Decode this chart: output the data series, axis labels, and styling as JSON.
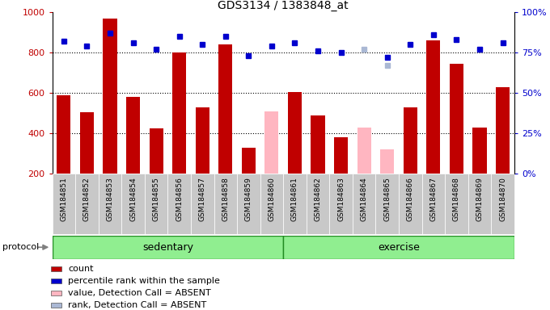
{
  "title": "GDS3134 / 1383848_at",
  "samples": [
    "GSM184851",
    "GSM184852",
    "GSM184853",
    "GSM184854",
    "GSM184855",
    "GSM184856",
    "GSM184857",
    "GSM184858",
    "GSM184859",
    "GSM184860",
    "GSM184861",
    "GSM184862",
    "GSM184863",
    "GSM184864",
    "GSM184865",
    "GSM184866",
    "GSM184867",
    "GSM184868",
    "GSM184869",
    "GSM184870"
  ],
  "count_values": [
    590,
    505,
    970,
    580,
    425,
    800,
    530,
    840,
    330,
    null,
    605,
    490,
    380,
    null,
    null,
    530,
    860,
    745,
    430,
    630
  ],
  "count_absent": [
    null,
    null,
    null,
    null,
    null,
    null,
    null,
    null,
    null,
    510,
    null,
    null,
    null,
    430,
    320,
    null,
    null,
    null,
    null,
    null
  ],
  "percentile_rank": [
    82,
    79,
    87,
    81,
    77,
    85,
    80,
    85,
    73,
    79,
    81,
    76,
    75,
    null,
    72,
    80,
    86,
    83,
    77,
    81
  ],
  "percentile_rank_absent": [
    null,
    null,
    null,
    null,
    null,
    null,
    null,
    null,
    null,
    null,
    null,
    null,
    null,
    77,
    67,
    null,
    null,
    null,
    null,
    null
  ],
  "groups": {
    "sedentary": [
      0,
      9
    ],
    "exercise": [
      10,
      19
    ]
  },
  "ylim_left": [
    200,
    1000
  ],
  "ylim_right": [
    0,
    100
  ],
  "yticks_left": [
    200,
    400,
    600,
    800,
    1000
  ],
  "yticks_right": [
    0,
    25,
    50,
    75,
    100
  ],
  "hlines": [
    400,
    600,
    800
  ],
  "bar_color_present": "#c00000",
  "bar_color_absent": "#ffb6c1",
  "dot_color_present": "#0000cd",
  "dot_color_absent": "#aab8d4",
  "group_color": "#90ee90",
  "group_border_color": "#228B22",
  "sample_bg_color": "#c8c8c8",
  "bar_width": 0.6,
  "legend_items": [
    {
      "label": "count",
      "color": "#c00000"
    },
    {
      "label": "percentile rank within the sample",
      "color": "#0000cd"
    },
    {
      "label": "value, Detection Call = ABSENT",
      "color": "#ffb6c1"
    },
    {
      "label": "rank, Detection Call = ABSENT",
      "color": "#aab8d4"
    }
  ]
}
